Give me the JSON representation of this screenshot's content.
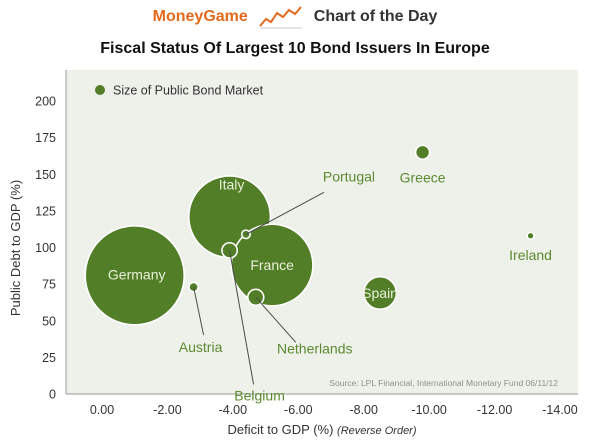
{
  "header": {
    "brand": "MoneyGame",
    "tagline": "Chart of the Day",
    "logo_icon": "rising-line-chart-icon"
  },
  "colors": {
    "brand": "#e46a1e",
    "bubble_fill": "#527e28",
    "bubble_stroke": "#ffffff",
    "label_on_bubble": "#e8efd9",
    "label_outside": "#5b8a2f",
    "plot_bg": "#eef1ea",
    "axis_text": "#333333"
  },
  "chart_data": {
    "type": "scatter",
    "subtype": "bubble",
    "title": "Fiscal Status Of Largest 10 Bond Issuers In Europe",
    "xlabel": "Deficit to GDP (%)",
    "xlabel_note": "(Reverse Order)",
    "ylabel": "Public Debt to GDP (%)",
    "x_reversed": true,
    "xlim": [
      1,
      -14
    ],
    "ylim": [
      0,
      200
    ],
    "x_ticks": [
      0,
      -2,
      -4,
      -6,
      -8,
      -10,
      -12,
      -14
    ],
    "x_tick_labels": [
      "0.00",
      "-2.00",
      "-4.00",
      "-6.00",
      "-8.00",
      "-10.00",
      "-12.00",
      "-14.00"
    ],
    "y_ticks": [
      0,
      25,
      50,
      75,
      100,
      125,
      150,
      175,
      200
    ],
    "y_tick_labels": [
      "0",
      "25",
      "50",
      "75",
      "100",
      "125",
      "150",
      "175",
      "200"
    ],
    "grid": false,
    "legend": {
      "label": "Size of Public Bond Market",
      "placement": "top-left"
    },
    "source": "Source: LPL Financial, International Monetary Fund   06/11/12",
    "points": [
      {
        "name": "Germany",
        "x": -1.0,
        "y": 81,
        "size": 2500
      },
      {
        "name": "Italy",
        "x": -3.9,
        "y": 121,
        "size": 1700
      },
      {
        "name": "France",
        "x": -5.2,
        "y": 88,
        "size": 1700
      },
      {
        "name": "Spain",
        "x": -8.5,
        "y": 69,
        "size": 270
      },
      {
        "name": "Greece",
        "x": -9.8,
        "y": 165,
        "size": 50
      },
      {
        "name": "Ireland",
        "x": -13.1,
        "y": 108,
        "size": 12
      },
      {
        "name": "Portugal",
        "x": -4.4,
        "y": 109,
        "size": 18
      },
      {
        "name": "Belgium",
        "x": -3.9,
        "y": 98,
        "size": 60
      },
      {
        "name": "Netherlands",
        "x": -4.7,
        "y": 66,
        "size": 65
      },
      {
        "name": "Austria",
        "x": -2.8,
        "y": 73,
        "size": 22
      }
    ]
  }
}
